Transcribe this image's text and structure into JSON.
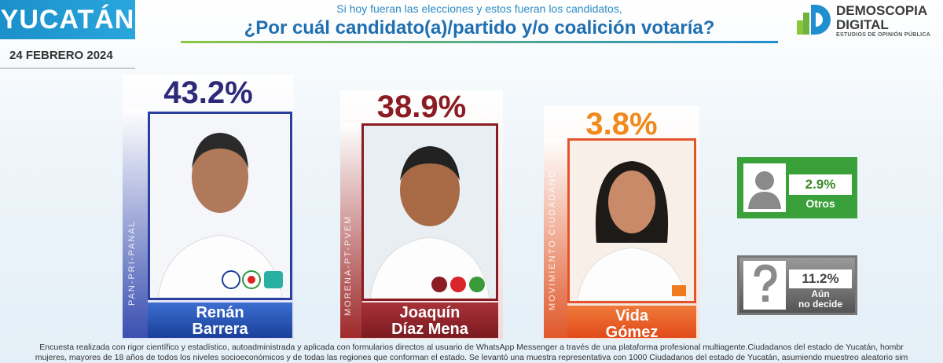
{
  "header": {
    "state": "YUCATÁN",
    "date": "24 FEBRERO 2024",
    "subtitle": "Si hoy fueran las elecciones y estos fueran los candidatos,",
    "title": "¿Por cuál candidato(a)/partido y/o coalición votaría?"
  },
  "logo": {
    "line1": "DEMOSCOPIA",
    "line2": "DIGITAL",
    "tagline": "ESTUDIOS DE OPINIÓN PÚBLICA"
  },
  "candidates": [
    {
      "percent": "43.2%",
      "coalition": "PAN-PRI-PANAL",
      "name_lines": [
        "Renán",
        "Barrera"
      ]
    },
    {
      "percent": "38.9%",
      "coalition": "MORENA-PT-PVEM",
      "name_lines": [
        "Joaquín",
        "Díaz Mena"
      ]
    },
    {
      "percent": "3.8%",
      "coalition": "MOVIMIENTO CIUDADANO",
      "name_lines": [
        "Vida",
        "Gómez"
      ]
    }
  ],
  "others": [
    {
      "percent": "2.9%",
      "label_lines": [
        "Otros"
      ]
    },
    {
      "percent": "11.2%",
      "label_lines": [
        "Aún",
        "no decide"
      ]
    }
  ],
  "footer": {
    "line1": "Encuesta realizada con rigor científico y estadístico, autoadministrada y aplicada con formularios directos al usuario de WhatsApp Messenger a través de una plataforma profesional multiagente.Ciudadanos del estado de Yucatán, hombr",
    "line2": "mujeres, mayores de 18 años de todos los niveles socioeconómicos y de todas las regiones que conforman el estado. Se levantó una muestra representativa con 1000 Ciudadanos del estado de Yucatán, asumiendo muestreo aleatorio sim"
  }
}
